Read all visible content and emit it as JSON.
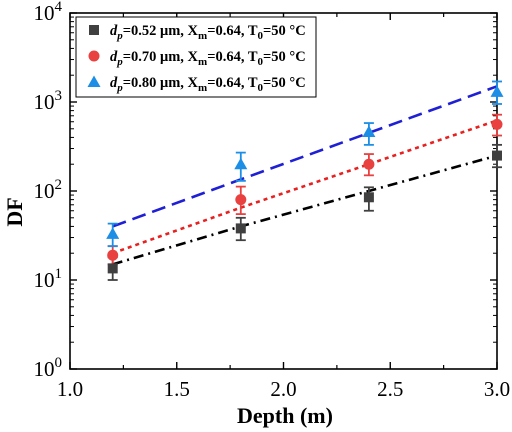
{
  "chart_data": {
    "type": "scatter",
    "xlabel": "Depth (m)",
    "ylabel": "DF",
    "xlim": [
      1.0,
      3.0
    ],
    "ylim": [
      1,
      10000
    ],
    "y_scale": "log",
    "x_ticks": [
      "1.0",
      "1.5",
      "2.0",
      "2.5",
      "3.0"
    ],
    "y_ticks": [
      {
        "base": "10",
        "exp": "0",
        "value": 1
      },
      {
        "base": "10",
        "exp": "1",
        "value": 10
      },
      {
        "base": "10",
        "exp": "2",
        "value": 100
      },
      {
        "base": "10",
        "exp": "3",
        "value": 1000
      },
      {
        "base": "10",
        "exp": "4",
        "value": 10000
      }
    ],
    "legend_position": "top-left",
    "grid": false,
    "series": [
      {
        "legend": {
          "pre": "d",
          "sub": "p",
          "text1": "=0.52 μm, X",
          "sub2": "m",
          "text2": "=0.64, T",
          "sub3": "0",
          "text3": "=50 °C"
        },
        "marker": "square",
        "color": "#404040",
        "fit_color": "#000000",
        "fit_dash": "dashdot",
        "x": [
          1.2,
          1.8,
          2.4,
          3.0
        ],
        "y": [
          13.5,
          38,
          85,
          250
        ],
        "y_err_low": [
          10,
          28,
          60,
          185
        ],
        "y_err_high": [
          18,
          50,
          110,
          330
        ],
        "fit_y": [
          15,
          40,
          100,
          250
        ]
      },
      {
        "legend": {
          "pre": "d",
          "sub": "p",
          "text1": "=0.70 μm, X",
          "sub2": "m",
          "text2": "=0.64, T",
          "sub3": "0",
          "text3": "=50 °C"
        },
        "marker": "circle",
        "color": "#e8413f",
        "fit_color": "#e82020",
        "fit_dash": "dot",
        "x": [
          1.2,
          1.8,
          2.4,
          3.0
        ],
        "y": [
          19,
          80,
          200,
          560
        ],
        "y_err_low": [
          15,
          55,
          150,
          420
        ],
        "y_err_high": [
          24,
          112,
          260,
          720
        ],
        "fit_y": [
          20,
          65,
          200,
          620
        ]
      },
      {
        "legend": {
          "pre": "d",
          "sub": "p",
          "text1": "=0.80 μm, X",
          "sub2": "m",
          "text2": "=0.64, T",
          "sub3": "0",
          "text3": "=50 °C"
        },
        "marker": "triangle",
        "color": "#1c8ee6",
        "fit_color": "#1f1fd6",
        "fit_dash": "dash",
        "x": [
          1.2,
          1.8,
          2.4,
          3.0
        ],
        "y": [
          33,
          200,
          460,
          1300
        ],
        "y_err_low": [
          24,
          130,
          330,
          950
        ],
        "y_err_high": [
          43,
          270,
          580,
          1700
        ],
        "fit_y": [
          40,
          135,
          450,
          1500
        ]
      }
    ]
  }
}
